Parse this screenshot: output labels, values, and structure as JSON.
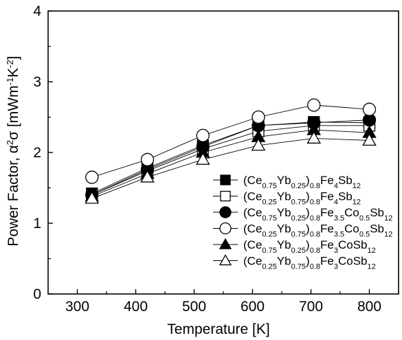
{
  "chart_data": {
    "type": "line",
    "xlabel": "Temperature [K]",
    "ylabel": "Power Factor, α²σ [mWm⁻¹K⁻²]",
    "xlim": [
      250,
      850
    ],
    "ylim": [
      0,
      4
    ],
    "xticks": [
      "300",
      "400",
      "500",
      "600",
      "700",
      "800"
    ],
    "yticks": [
      "0",
      "1",
      "2",
      "3",
      "4"
    ],
    "x": [
      325,
      420,
      515,
      610,
      705,
      800
    ],
    "legend_position": "lower-right",
    "grid": false,
    "series": [
      {
        "name": "(Ce0.75Yb0.25)0.8Fe4Sb12",
        "marker": "square",
        "fill": "filled",
        "values": [
          1.42,
          1.78,
          2.1,
          2.38,
          2.43,
          2.42
        ],
        "name_parts": [
          [
            "(Ce",
            ""
          ],
          [
            "0.75",
            "s"
          ],
          [
            "Yb",
            ""
          ],
          [
            "0.25",
            "s"
          ],
          [
            ")",
            ""
          ],
          [
            "0.8",
            "s"
          ],
          [
            "Fe",
            ""
          ],
          [
            "4",
            "s"
          ],
          [
            "Sb",
            ""
          ],
          [
            "12",
            "s"
          ]
        ]
      },
      {
        "name": "(Ce0.25Yb0.75)0.8Fe4Sb12",
        "marker": "square",
        "fill": "open",
        "values": [
          1.4,
          1.74,
          2.05,
          2.3,
          2.38,
          2.38
        ],
        "name_parts": [
          [
            "(Ce",
            ""
          ],
          [
            "0.25",
            "s"
          ],
          [
            "Yb",
            ""
          ],
          [
            "0.75",
            "s"
          ],
          [
            ")",
            ""
          ],
          [
            "0.8",
            "s"
          ],
          [
            "Fe",
            ""
          ],
          [
            "4",
            "s"
          ],
          [
            "Sb",
            ""
          ],
          [
            "12",
            "s"
          ]
        ]
      },
      {
        "name": "(Ce0.75Yb0.25)0.8Fe3.5Co0.5Sb12",
        "marker": "circle",
        "fill": "filled",
        "values": [
          1.4,
          1.76,
          2.08,
          2.38,
          2.42,
          2.46
        ],
        "name_parts": [
          [
            "(Ce",
            ""
          ],
          [
            "0.75",
            "s"
          ],
          [
            "Yb",
            ""
          ],
          [
            "0.25",
            "s"
          ],
          [
            ")",
            ""
          ],
          [
            "0.8",
            "s"
          ],
          [
            "Fe",
            ""
          ],
          [
            "3.5",
            "s"
          ],
          [
            "Co",
            ""
          ],
          [
            "0.5",
            "s"
          ],
          [
            "Sb",
            ""
          ],
          [
            "12",
            "s"
          ]
        ]
      },
      {
        "name": "(Ce0.25Yb0.75)0.8Fe3.5Co0.5Sb12",
        "marker": "circle",
        "fill": "open",
        "values": [
          1.65,
          1.9,
          2.24,
          2.5,
          2.67,
          2.61
        ],
        "name_parts": [
          [
            "(Ce",
            ""
          ],
          [
            "0.25",
            "s"
          ],
          [
            "Yb",
            ""
          ],
          [
            "0.75",
            "s"
          ],
          [
            ")",
            ""
          ],
          [
            "0.8",
            "s"
          ],
          [
            "Fe",
            ""
          ],
          [
            "3.5",
            "s"
          ],
          [
            "Co",
            ""
          ],
          [
            "0.5",
            "s"
          ],
          [
            "Sb",
            ""
          ],
          [
            "12",
            "s"
          ]
        ]
      },
      {
        "name": "(Ce0.75Yb0.25)0.8Fe3CoSb12",
        "marker": "triangle",
        "fill": "filled",
        "values": [
          1.38,
          1.7,
          2.0,
          2.22,
          2.32,
          2.28
        ],
        "name_parts": [
          [
            "(Ce",
            ""
          ],
          [
            "0.75",
            "s"
          ],
          [
            "Yb",
            ""
          ],
          [
            "0.25",
            "s"
          ],
          [
            ")",
            ""
          ],
          [
            "0.8",
            "s"
          ],
          [
            "Fe",
            ""
          ],
          [
            "3",
            "s"
          ],
          [
            "CoSb",
            ""
          ],
          [
            "12",
            "s"
          ]
        ]
      },
      {
        "name": "(Ce0.25Yb0.75)0.8Fe3CoSb12",
        "marker": "triangle",
        "fill": "open",
        "values": [
          1.35,
          1.65,
          1.9,
          2.1,
          2.2,
          2.17
        ],
        "name_parts": [
          [
            "(Ce",
            ""
          ],
          [
            "0.25",
            "s"
          ],
          [
            "Yb",
            ""
          ],
          [
            "0.75",
            "s"
          ],
          [
            ")",
            ""
          ],
          [
            "0.8",
            "s"
          ],
          [
            "Fe",
            ""
          ],
          [
            "3",
            "s"
          ],
          [
            "CoSb",
            ""
          ],
          [
            "12",
            "s"
          ]
        ]
      }
    ]
  }
}
